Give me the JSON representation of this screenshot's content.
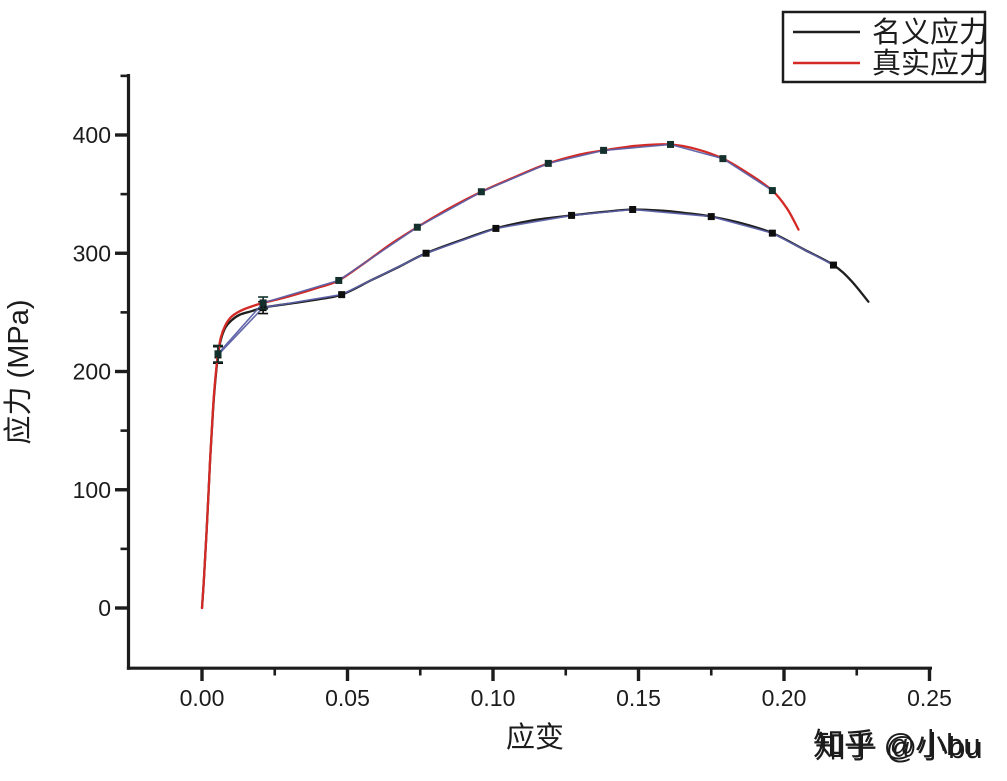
{
  "watermark": {
    "text": "知乎 @小bu",
    "color": "#c6c6c6",
    "shadow_color": "#ffffff"
  },
  "legend": {
    "items": [
      {
        "label": "名义应力",
        "color": "#1f1f1f"
      },
      {
        "label": "真实应力",
        "color": "#d32a26"
      }
    ]
  },
  "axes": {
    "x_label": "应变",
    "y_label": "应力 (MPa)",
    "x_tick_labels": [
      "0.00",
      "0.05",
      "0.10",
      "0.15",
      "0.20",
      "0.25"
    ],
    "y_tick_labels": [
      "0",
      "100",
      "200",
      "300",
      "400"
    ],
    "axis_color": "#1c1c1c"
  },
  "chart_data": {
    "type": "line",
    "title": "",
    "xlabel": "应变",
    "ylabel": "应力 (MPa)",
    "xlim": [
      -0.025,
      0.252
    ],
    "ylim": [
      -51,
      451
    ],
    "x_major_ticks": [
      0,
      0.05,
      0.1,
      0.15,
      0.2,
      0.25
    ],
    "x_minor_ticks": [
      0.025,
      0.075,
      0.125,
      0.175,
      0.225
    ],
    "y_major_ticks": [
      0,
      100,
      200,
      300,
      400
    ],
    "y_minor_ticks": [
      50,
      150,
      250,
      350,
      450
    ],
    "grid": false,
    "legend_position": "top-right",
    "series": [
      {
        "name": "名义应力",
        "color": "#1f1f1f",
        "connect_color": "#5b60a6",
        "marker": "square",
        "marker_color": "#0e0e0e",
        "markers": {
          "x": [
            0.0055,
            0.021,
            0.048,
            0.077,
            0.101,
            0.127,
            0.148,
            0.175,
            0.196,
            0.217
          ],
          "y": [
            214,
            254,
            265,
            300,
            321,
            332,
            337,
            331,
            317,
            290
          ],
          "yerr": [
            7,
            5,
            0,
            0,
            0,
            0,
            0,
            0,
            0,
            0
          ]
        },
        "curve": {
          "x": [
            0,
            0.0008,
            0.0018,
            0.0028,
            0.0038,
            0.0048,
            0.0055,
            0.0065,
            0.008,
            0.01,
            0.013,
            0.017,
            0.021,
            0.026,
            0.032,
            0.04,
            0.048,
            0.058,
            0.068,
            0.077,
            0.089,
            0.101,
            0.114,
            0.127,
            0.138,
            0.148,
            0.158,
            0.166,
            0.175,
            0.186,
            0.196,
            0.207,
            0.217,
            0.223,
            0.229
          ],
          "y": [
            0,
            30,
            75,
            125,
            168,
            198,
            214,
            227,
            237,
            243,
            248,
            251,
            254,
            256,
            258,
            261,
            265,
            277,
            289,
            300,
            311,
            321,
            328,
            332,
            335,
            337,
            336,
            334,
            331,
            325,
            317,
            303,
            290,
            277,
            259
          ]
        }
      },
      {
        "name": "真实应力",
        "color": "#d32a26",
        "connect_color": "#5b60a6",
        "marker": "square",
        "marker_color": "#14302c",
        "markers": {
          "x": [
            0.0055,
            0.021,
            0.047,
            0.074,
            0.096,
            0.119,
            0.138,
            0.161,
            0.179,
            0.196
          ],
          "y": [
            215,
            258,
            277,
            322,
            352,
            376,
            387,
            392,
            380,
            353
          ],
          "yerr": [
            7,
            5,
            0,
            0,
            0,
            0,
            0,
            0,
            0,
            0
          ]
        },
        "curve": {
          "x": [
            0,
            0.0008,
            0.0018,
            0.0028,
            0.0038,
            0.0048,
            0.0055,
            0.0065,
            0.008,
            0.01,
            0.013,
            0.017,
            0.021,
            0.026,
            0.032,
            0.04,
            0.047,
            0.056,
            0.065,
            0.074,
            0.085,
            0.096,
            0.108,
            0.119,
            0.129,
            0.138,
            0.15,
            0.161,
            0.17,
            0.179,
            0.188,
            0.196,
            0.201,
            0.205
          ],
          "y": [
            0,
            30,
            75,
            125,
            170,
            200,
            215,
            229,
            239,
            246,
            251,
            255,
            258,
            261,
            265,
            271,
            277,
            292,
            308,
            322,
            338,
            352,
            365,
            376,
            383,
            387,
            391,
            392,
            388,
            380,
            367,
            353,
            338,
            320
          ]
        }
      }
    ]
  }
}
